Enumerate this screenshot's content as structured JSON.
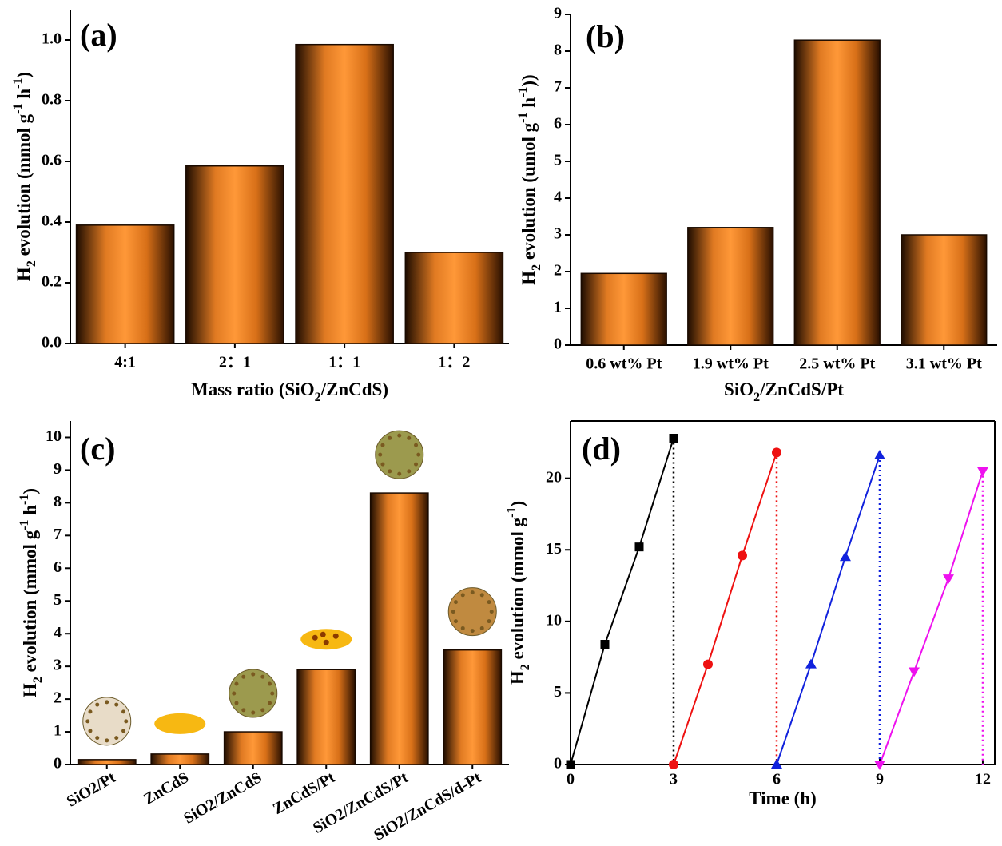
{
  "chart_data": [
    {
      "type": "bar",
      "panel_label": "(a)",
      "ylabel": [
        "H",
        "2",
        " evolution (mmol g",
        "-1",
        " h",
        "-1",
        ")"
      ],
      "xlabel": [
        "Mass ratio (SiO",
        "2",
        "/ZnCdS)"
      ],
      "categories": [
        "4:1",
        "2：1",
        "1：1",
        "1：2"
      ],
      "values": [
        0.39,
        0.585,
        0.985,
        0.3
      ],
      "ylim": [
        0,
        1.1
      ],
      "yticks": [
        {
          "value": 0,
          "label": "0.0"
        },
        0.2,
        0.4,
        0.6,
        0.8,
        {
          "value": 1,
          "label": "1.0"
        }
      ],
      "color": "#f08a2a"
    },
    {
      "type": "bar",
      "panel_label": "(b)",
      "ylabel": [
        "H",
        "2",
        " evolution (umol g",
        "-1",
        " h",
        "-1",
        "))"
      ],
      "xlabel": [
        "SiO",
        "2",
        "/ZnCdS/Pt"
      ],
      "categories": [
        "0.6 wt% Pt",
        "1.9 wt% Pt",
        "2.5 wt% Pt",
        "3.1 wt% Pt"
      ],
      "values": [
        1.95,
        3.2,
        8.3,
        3.0
      ],
      "ylim": [
        0,
        9
      ],
      "yticks": [
        0,
        1,
        2,
        3,
        4,
        5,
        6,
        7,
        8,
        9
      ],
      "color": "#f08a2a"
    },
    {
      "type": "bar",
      "panel_label": "(c)",
      "ylabel": [
        "H",
        "2",
        " evolution (mmol g",
        "-1",
        " h",
        "-1",
        ")"
      ],
      "categories": [
        "SiO2/Pt",
        "ZnCdS",
        "SiO2/ZnCdS",
        "ZnCdS/Pt",
        "SiO2/ZnCdS/Pt",
        "SiO2/ZnCdS/d-Pt"
      ],
      "values": [
        0.15,
        0.32,
        1.0,
        2.9,
        8.3,
        3.5
      ],
      "ylim": [
        0,
        10.5
      ],
      "yticks": [
        0,
        1,
        2,
        3,
        4,
        5,
        6,
        7,
        8,
        9,
        10
      ],
      "color": "#f08a2a"
    },
    {
      "type": "line",
      "panel_label": "(d)",
      "ylabel": [
        "H",
        "2",
        " evolution (mmol g",
        "-1",
        ")"
      ],
      "xlabel": [
        "Time (h)"
      ],
      "xlim": [
        0,
        12.35
      ],
      "ylim": [
        0,
        24
      ],
      "xticks": [
        0,
        3,
        6,
        9,
        12
      ],
      "yticks": [
        0,
        5,
        10,
        15,
        20
      ],
      "series": [
        {
          "color": "#000000",
          "marker": "square",
          "x": [
            0,
            1,
            2,
            3
          ],
          "values": [
            0,
            8.4,
            15.2,
            22.8
          ]
        },
        {
          "color": "#ee1111",
          "marker": "circle",
          "x": [
            3,
            4,
            5,
            6
          ],
          "values": [
            0,
            7,
            14.6,
            21.8
          ]
        },
        {
          "color": "#1122dd",
          "marker": "triangle-up",
          "x": [
            6,
            7,
            8,
            9
          ],
          "values": [
            0,
            7,
            14.5,
            21.6
          ]
        },
        {
          "color": "#ee11ee",
          "marker": "triangle-down",
          "x": [
            9,
            10,
            11,
            12
          ],
          "values": [
            0,
            6.5,
            13,
            20.5
          ]
        }
      ]
    }
  ]
}
